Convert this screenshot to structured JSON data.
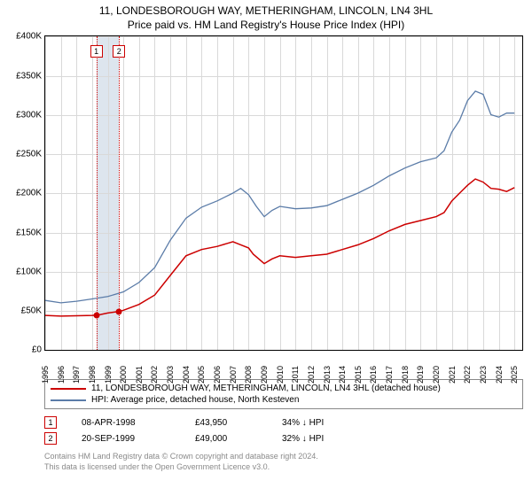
{
  "title_line1": "11, LONDESBOROUGH WAY, METHERINGHAM, LINCOLN, LN4 3HL",
  "title_line2": "Price paid vs. HM Land Registry's House Price Index (HPI)",
  "chart": {
    "type": "line",
    "background_color": "#ffffff",
    "grid_color": "#d9d9d9",
    "axis_color": "#000000",
    "x_years": [
      1995,
      1996,
      1997,
      1998,
      1999,
      2000,
      2001,
      2002,
      2003,
      2004,
      2005,
      2006,
      2007,
      2008,
      2009,
      2010,
      2011,
      2012,
      2013,
      2014,
      2015,
      2016,
      2017,
      2018,
      2019,
      2020,
      2021,
      2022,
      2023,
      2024,
      2025
    ],
    "xlim": [
      1995,
      2025.5
    ],
    "ylim": [
      0,
      400000
    ],
    "ytick_step": 50000,
    "yticks": [
      "£0",
      "£50K",
      "£100K",
      "£150K",
      "£200K",
      "£250K",
      "£300K",
      "£350K",
      "£400K"
    ],
    "series": [
      {
        "id": "price_paid",
        "label": "11, LONDESBOROUGH WAY, METHERINGHAM, LINCOLN, LN4 3HL (detached house)",
        "color": "#cc0000",
        "line_width": 1.5,
        "values": [
          [
            1995,
            44000
          ],
          [
            1996,
            43000
          ],
          [
            1997,
            43500
          ],
          [
            1998,
            43950
          ],
          [
            1998.5,
            45000
          ],
          [
            1999,
            47000
          ],
          [
            1999.72,
            49000
          ],
          [
            2000,
            50500
          ],
          [
            2001,
            58000
          ],
          [
            2002,
            70000
          ],
          [
            2003,
            95000
          ],
          [
            2004,
            120000
          ],
          [
            2005,
            128000
          ],
          [
            2006,
            132000
          ],
          [
            2007,
            138000
          ],
          [
            2007.5,
            134000
          ],
          [
            2008,
            130000
          ],
          [
            2008.3,
            122000
          ],
          [
            2009,
            110000
          ],
          [
            2009.5,
            116000
          ],
          [
            2010,
            120000
          ],
          [
            2011,
            118000
          ],
          [
            2012,
            120000
          ],
          [
            2013,
            122000
          ],
          [
            2014,
            128000
          ],
          [
            2015,
            134000
          ],
          [
            2016,
            142000
          ],
          [
            2017,
            152000
          ],
          [
            2018,
            160000
          ],
          [
            2019,
            165000
          ],
          [
            2020,
            170000
          ],
          [
            2020.5,
            175000
          ],
          [
            2021,
            190000
          ],
          [
            2021.5,
            200000
          ],
          [
            2022,
            210000
          ],
          [
            2022.5,
            218000
          ],
          [
            2023,
            214000
          ],
          [
            2023.5,
            206000
          ],
          [
            2024,
            205000
          ],
          [
            2024.5,
            202000
          ],
          [
            2025,
            207000
          ]
        ]
      },
      {
        "id": "hpi",
        "label": "HPI: Average price, detached house, North Kesteven",
        "color": "#5b7ca8",
        "line_width": 1.3,
        "values": [
          [
            1995,
            63000
          ],
          [
            1996,
            60000
          ],
          [
            1997,
            62000
          ],
          [
            1998,
            65000
          ],
          [
            1999,
            68000
          ],
          [
            2000,
            74000
          ],
          [
            2001,
            86000
          ],
          [
            2002,
            105000
          ],
          [
            2003,
            140000
          ],
          [
            2004,
            168000
          ],
          [
            2005,
            182000
          ],
          [
            2006,
            190000
          ],
          [
            2007,
            200000
          ],
          [
            2007.5,
            206000
          ],
          [
            2008,
            198000
          ],
          [
            2008.5,
            183000
          ],
          [
            2009,
            170000
          ],
          [
            2009.5,
            178000
          ],
          [
            2010,
            183000
          ],
          [
            2011,
            180000
          ],
          [
            2012,
            181000
          ],
          [
            2013,
            184000
          ],
          [
            2014,
            192000
          ],
          [
            2015,
            200000
          ],
          [
            2016,
            210000
          ],
          [
            2017,
            222000
          ],
          [
            2018,
            232000
          ],
          [
            2019,
            240000
          ],
          [
            2020,
            245000
          ],
          [
            2020.5,
            254000
          ],
          [
            2021,
            278000
          ],
          [
            2021.5,
            293000
          ],
          [
            2022,
            318000
          ],
          [
            2022.5,
            330000
          ],
          [
            2023,
            326000
          ],
          [
            2023.5,
            300000
          ],
          [
            2024,
            297000
          ],
          [
            2024.5,
            302000
          ],
          [
            2025,
            302000
          ]
        ]
      }
    ],
    "event_band": {
      "start": 1998.27,
      "end": 1999.72,
      "color": "#dde5ee"
    },
    "events": [
      {
        "n": "1",
        "year": 1998.27,
        "date": "08-APR-1998",
        "price": "£43,950",
        "delta": "34% ↓ HPI",
        "color": "#cc0000",
        "y_value": 43950
      },
      {
        "n": "2",
        "year": 1999.72,
        "date": "20-SEP-1999",
        "price": "£49,000",
        "delta": "32% ↓ HPI",
        "color": "#cc0000",
        "y_value": 49000
      }
    ],
    "tick_fontsize": 10,
    "label_fontsize": 10
  },
  "footer_line1": "Contains HM Land Registry data © Crown copyright and database right 2024.",
  "footer_line2": "This data is licensed under the Open Government Licence v3.0."
}
